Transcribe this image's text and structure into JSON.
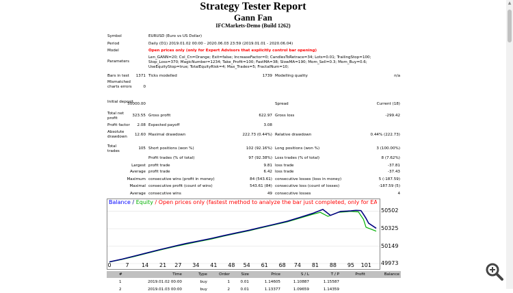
{
  "header": {
    "title": "Strategy Tester Report",
    "ea_name": "Gann Fan",
    "server": "IFCMarkets-Demo (Build 1262)"
  },
  "settings": {
    "symbol_label": "Symbol",
    "symbol_value": "EURUSD (Euro vs US Dollar)",
    "period_label": "Period",
    "period_value": "Daily (D1) 2019.01.02 00:00 - 2020.06.03 23:59 (2019.01.01 - 2020.06.04)",
    "model_label": "Model",
    "model_value": "Open prices only (only for Expert Advisors that explicitly control bar opening)",
    "parameters_label": "Parameters",
    "parameters_value": "Len_GANN=20; Col_Cn=Orange; Exit=false; IncreaseFactor=0; CandlesToRetrace=34; Lots=0.01; TrailingStop=100; Stop_Loss=370; MagicNumber=1234; Take_Profit=100; FastMA=38; SlowMA=190; Mom_Sell=0.3; Mom_Buy=0.6; UseEquityStop=true; TotalEquityRisk=4; Max_Trades=5; FractalNum=10;",
    "bars_label": "Bars in test",
    "bars_value": "1371",
    "ticks_label": "Ticks modelled",
    "ticks_value": "1739",
    "quality_label": "Modelling quality",
    "quality_value": "n/a",
    "mismatched_label": "Mismatched charts errors",
    "mismatched_value": "0"
  },
  "results": {
    "initial_deposit_label": "Initial deposit",
    "initial_deposit": "50000.00",
    "spread_label": "Spread",
    "spread_value": "Current (18)",
    "net_profit_label": "Total net profit",
    "net_profit": "323.55",
    "gross_profit_label": "Gross profit",
    "gross_profit": "622.97",
    "gross_loss_label": "Gross loss",
    "gross_loss": "-299.42",
    "profit_factor_label": "Profit factor",
    "profit_factor": "2.08",
    "expected_payoff_label": "Expected payoff",
    "expected_payoff": "3.08",
    "abs_dd_label": "Absolute drawdown",
    "abs_dd": "12.60",
    "max_dd_label": "Maximal drawdown",
    "max_dd": "222.73 (0.44%)",
    "rel_dd_label": "Relative drawdown",
    "rel_dd": "0.44% (222.73)",
    "total_trades_label": "Total trades",
    "total_trades": "105",
    "short_label": "Short positions (won %)",
    "short_value": "102 (92.16%)",
    "long_label": "Long positions (won %)",
    "long_value": "3 (100.00%)",
    "profit_trades_label": "Profit trades (% of total)",
    "profit_trades": "97 (92.38%)",
    "loss_trades_label": "Loss trades (% of total)",
    "loss_trades": "8 (7.62%)",
    "largest_label": "Largest",
    "largest_profit_label": "profit trade",
    "largest_profit": "9.81",
    "largest_loss_label": "loss trade",
    "largest_loss": "-37.81",
    "average_label": "Average",
    "average_profit_label": "profit trade",
    "average_profit": "6.42",
    "average_loss_label": "loss trade",
    "average_loss": "-37.43",
    "maximum_label": "Maximum",
    "max_cons_wins_label": "consecutive wins (profit in money)",
    "max_cons_wins": "84 (543.61)",
    "max_cons_losses_label": "consecutive losses (loss in money)",
    "max_cons_losses": "5 (-187.59)",
    "maximal_label": "Maximal",
    "maximal_cons_profit_label": "consecutive profit (count of wins)",
    "maximal_cons_profit": "543.61 (84)",
    "maximal_cons_loss_label": "consecutive loss (count of losses)",
    "maximal_cons_loss": "-187.59 (5)",
    "avg_cons_label": "Average",
    "avg_cons_wins_label": "consecutive wins",
    "avg_cons_wins": "49",
    "avg_cons_losses_label": "consecutive losses",
    "avg_cons_losses": "4"
  },
  "chart_data": {
    "type": "line",
    "legend_balance": "Balance",
    "legend_sep": " / ",
    "legend_equity": "Equity",
    "legend_note": " / Open prices only (fastest method to analyze the bar just completed, only for EAs that explicitly control bar opening)",
    "colors": {
      "balance": "#0000ff",
      "equity": "#00b000",
      "note": "#ff0000",
      "ink": "#000080"
    },
    "ylim": [
      49973,
      50540
    ],
    "y_ticks": [
      50502,
      50325,
      50149,
      49973
    ],
    "x_ticks": [
      0,
      7,
      14,
      21,
      27,
      34,
      41,
      48,
      54,
      61,
      68,
      74,
      81,
      88,
      95,
      101
    ],
    "x_max": 105,
    "series": [
      {
        "name": "Balance",
        "x": [
          0,
          5,
          10,
          15,
          20,
          25,
          30,
          35,
          40,
          45,
          50,
          55,
          60,
          65,
          70,
          75,
          80,
          84,
          87,
          91,
          95,
          97,
          99,
          100,
          101,
          102,
          105
        ],
        "y": [
          49990,
          50018,
          50050,
          50082,
          50115,
          50145,
          50175,
          50200,
          50226,
          50255,
          50283,
          50310,
          50340,
          50370,
          50400,
          50440,
          50480,
          50520,
          50460,
          50500,
          50505,
          50510,
          50508,
          50470,
          50430,
          50380,
          50330
        ]
      },
      {
        "name": "Equity",
        "x": [
          0,
          5,
          10,
          15,
          20,
          25,
          30,
          35,
          40,
          45,
          50,
          55,
          60,
          65,
          70,
          75,
          80,
          83,
          86,
          90,
          95,
          98,
          100,
          101,
          103,
          105
        ],
        "y": [
          49988,
          50015,
          50045,
          50078,
          50110,
          50140,
          50168,
          50195,
          50220,
          50250,
          50278,
          50305,
          50335,
          50365,
          50395,
          50432,
          50470,
          50490,
          50450,
          50490,
          50500,
          50495,
          50420,
          50340,
          50320,
          50300
        ]
      }
    ]
  },
  "trades_table": {
    "columns": [
      "#",
      "Time",
      "Type",
      "Order",
      "Size",
      "Price",
      "S / L",
      "T / P",
      "Profit",
      "Balance"
    ],
    "rows": [
      [
        "1",
        "2019.01.02 00:00",
        "buy",
        "1",
        "0.01",
        "1.14605",
        "1.10887",
        "1.15587",
        "",
        ""
      ],
      [
        "2",
        "2019.01.03 00:00",
        "buy",
        "2",
        "0.01",
        "1.13377",
        "1.09659",
        "1.14359",
        "",
        ""
      ]
    ]
  },
  "icons": {
    "zoom": "zoom-in-icon"
  }
}
